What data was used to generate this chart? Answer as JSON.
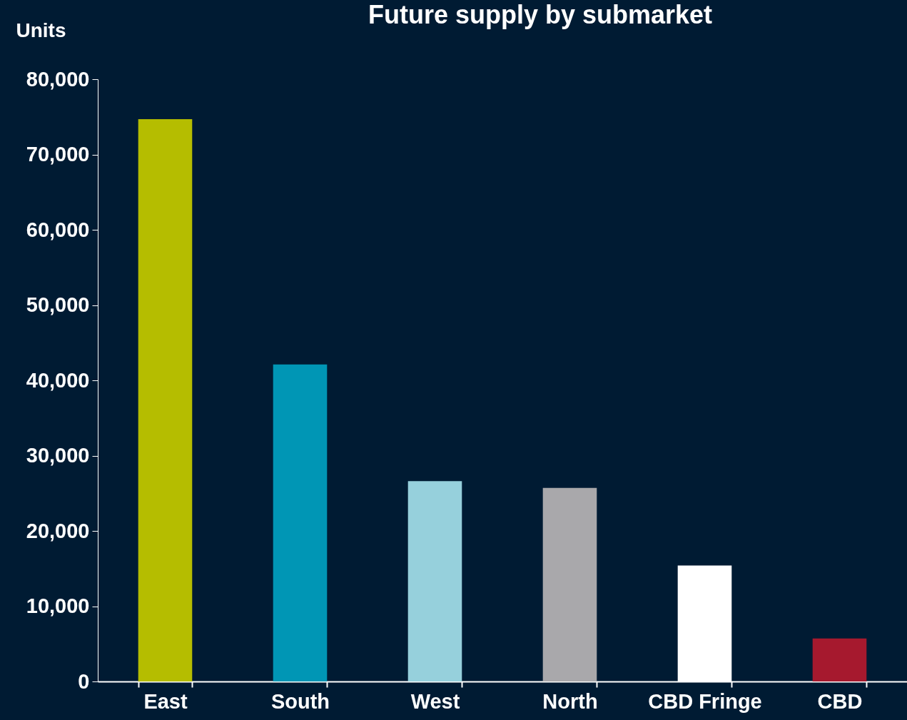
{
  "chart_data": {
    "type": "bar",
    "title": "Future supply by submarket",
    "ylabel": "Units",
    "categories": [
      "East",
      "South",
      "West",
      "North",
      "CBD Fringe",
      "CBD"
    ],
    "values": [
      74700,
      42100,
      26600,
      25700,
      15400,
      5700
    ],
    "colors": [
      "#b5bd00",
      "#0096b5",
      "#96d0dc",
      "#a9a8ab",
      "#ffffff",
      "#a6192e"
    ],
    "ylim": [
      0,
      80000
    ],
    "yticks": [
      0,
      {
        "value": 10000,
        "label": "10,000"
      },
      {
        "value": 20000,
        "label": "20,000"
      },
      {
        "value": 30000,
        "label": "30,000"
      },
      {
        "value": 40000,
        "label": "40,000"
      },
      {
        "value": 50000,
        "label": "50,000"
      },
      {
        "value": 60000,
        "label": "60,000"
      },
      {
        "value": 70000,
        "label": "70,000"
      },
      {
        "value": 80000,
        "label": "80,000"
      }
    ]
  }
}
